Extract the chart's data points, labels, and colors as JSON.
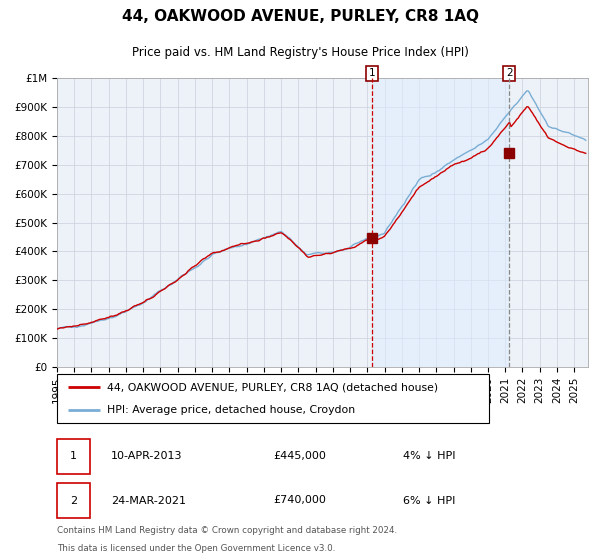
{
  "title": "44, OAKWOOD AVENUE, PURLEY, CR8 1AQ",
  "subtitle": "Price paid vs. HM Land Registry's House Price Index (HPI)",
  "legend_line1": "44, OAKWOOD AVENUE, PURLEY, CR8 1AQ (detached house)",
  "legend_line2": "HPI: Average price, detached house, Croydon",
  "transaction1_date": "10-APR-2013",
  "transaction1_price": 445000,
  "transaction1_label": "4% ↓ HPI",
  "transaction2_date": "24-MAR-2021",
  "transaction2_price": 740000,
  "transaction2_label": "6% ↓ HPI",
  "footnote_line1": "Contains HM Land Registry data © Crown copyright and database right 2024.",
  "footnote_line2": "This data is licensed under the Open Government Licence v3.0.",
  "hpi_color": "#7aadd4",
  "price_color": "#cc0000",
  "shading_color": "#ddeeff",
  "grid_color": "#c8d0dc",
  "bg_color": "#edf2f8",
  "transaction1_x": 2013.27,
  "transaction2_x": 2021.23,
  "xlim_start": 1995.0,
  "xlim_end": 2025.8,
  "ylim_bottom": 0,
  "ylim_top": 1000000,
  "yticks": [
    0,
    100000,
    200000,
    300000,
    400000,
    500000,
    600000,
    700000,
    800000,
    900000,
    1000000
  ],
  "xticks": [
    1995,
    1996,
    1997,
    1998,
    1999,
    2000,
    2001,
    2002,
    2003,
    2004,
    2005,
    2006,
    2007,
    2008,
    2009,
    2010,
    2011,
    2012,
    2013,
    2014,
    2015,
    2016,
    2017,
    2018,
    2019,
    2020,
    2021,
    2022,
    2023,
    2024,
    2025
  ]
}
